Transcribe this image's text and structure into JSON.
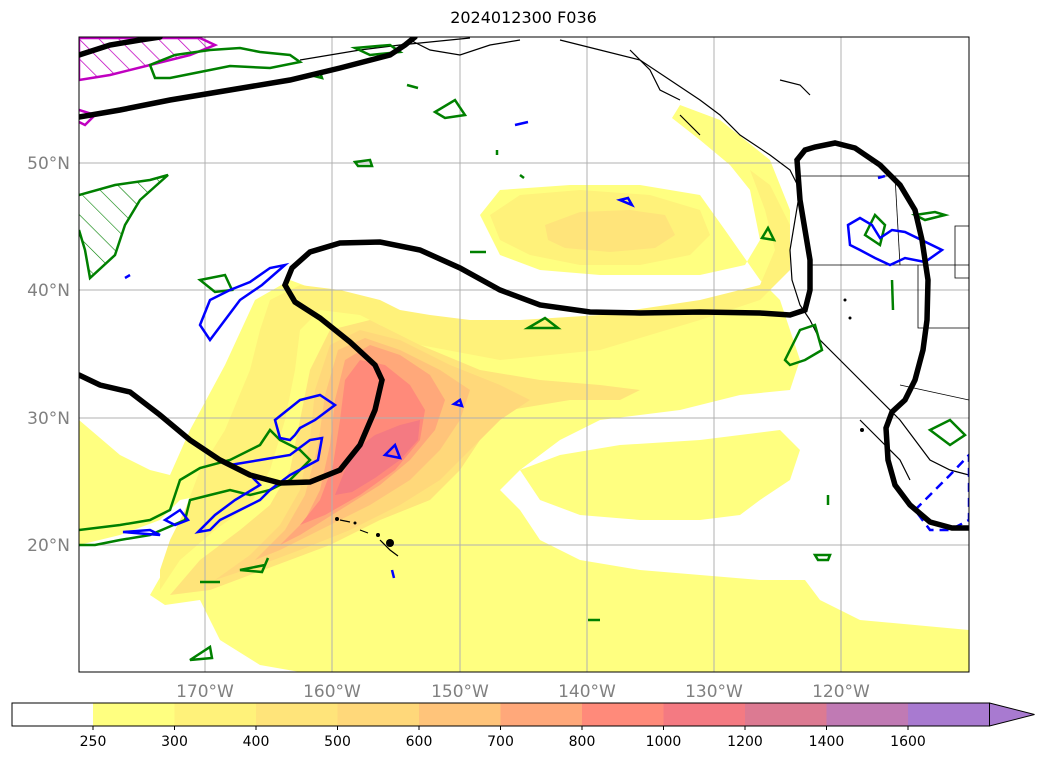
{
  "title": "2024012300 F036",
  "latitude_labels": [
    "50°N",
    "40°N",
    "30°N",
    "20°N"
  ],
  "longitude_labels": [
    "170°W",
    "160°W",
    "150°W",
    "140°W",
    "130°W",
    "120°W"
  ],
  "colorbar": {
    "ticks": [
      "250",
      "300",
      "400",
      "500",
      "600",
      "700",
      "800",
      "1000",
      "1200",
      "1400",
      "1600"
    ],
    "colors": [
      "#ffff80",
      "#fff27a",
      "#ffe47a",
      "#ffd87a",
      "#ffc47a",
      "#ffa87a",
      "#ff8a7a",
      "#f47a82",
      "#dc7a92",
      "#c07ab4",
      "#a87ad0"
    ],
    "below_color": "#ffffff",
    "extend": "max"
  },
  "contour_colors": {
    "thick_contour": "#000000",
    "green_contour": "#008000",
    "blue_contour": "#0000ff",
    "magenta_contour": "#c000c0",
    "coastline": "#000000",
    "gridline": "#b0b0b0"
  }
}
